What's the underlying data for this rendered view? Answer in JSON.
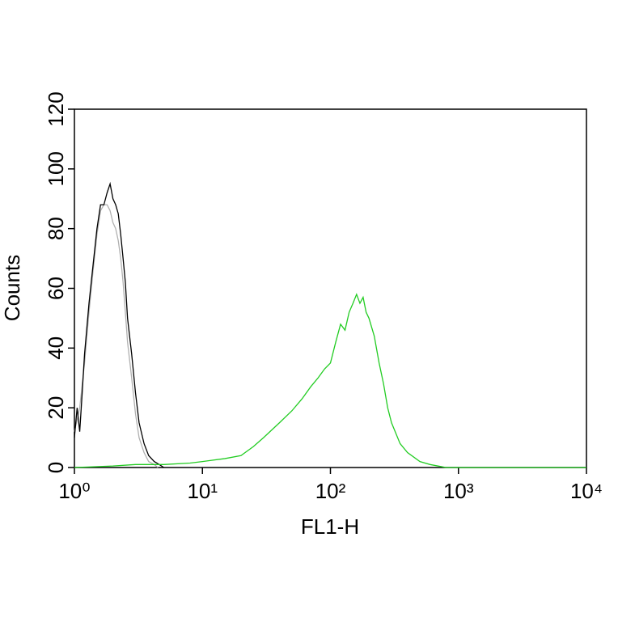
{
  "chart_data": {
    "type": "line",
    "x_label": "FL1-H",
    "y_label": "Counts",
    "xscale": "log",
    "xlim": [
      1,
      10000
    ],
    "xticks": [
      {
        "value": 1,
        "label": "10⁰"
      },
      {
        "value": 10,
        "label": "10¹"
      },
      {
        "value": 100,
        "label": "10²"
      },
      {
        "value": 1000,
        "label": "10³"
      },
      {
        "value": 10000,
        "label": "10⁴"
      }
    ],
    "ylim": [
      0,
      120
    ],
    "yticks": [
      0,
      20,
      40,
      60,
      80,
      100,
      120
    ],
    "series": [
      {
        "color": "#b0b0b0",
        "x": [
          1.0,
          1.1,
          1.2,
          1.3,
          1.4,
          1.5,
          1.6,
          1.7,
          1.8,
          1.9,
          2.0,
          2.1,
          2.2,
          2.3,
          2.4,
          2.5,
          2.6,
          2.8,
          3.0,
          3.2,
          3.5,
          3.8,
          4.2,
          4.5
        ],
        "values": [
          12,
          20,
          35,
          52,
          66,
          78,
          86,
          88,
          88,
          86,
          82,
          80,
          76,
          70,
          62,
          52,
          42,
          30,
          18,
          10,
          5,
          2,
          1,
          0
        ]
      },
      {
        "color": "#000000",
        "x": [
          1.0,
          1.05,
          1.1,
          1.15,
          1.2,
          1.3,
          1.4,
          1.5,
          1.6,
          1.7,
          1.8,
          1.9,
          2.0,
          2.1,
          2.2,
          2.3,
          2.4,
          2.5,
          2.6,
          2.8,
          3.0,
          3.2,
          3.5,
          3.8,
          4.2,
          4.6,
          5.0
        ],
        "values": [
          10,
          20,
          12,
          25,
          38,
          55,
          68,
          80,
          88,
          88,
          92,
          95,
          90,
          88,
          85,
          78,
          70,
          62,
          50,
          38,
          25,
          15,
          8,
          4,
          2,
          1,
          0
        ]
      },
      {
        "color": "#22cc22",
        "x": [
          1,
          2,
          3,
          5,
          8,
          10,
          15,
          20,
          25,
          30,
          40,
          50,
          60,
          70,
          80,
          90,
          100,
          110,
          120,
          130,
          140,
          150,
          160,
          170,
          180,
          190,
          200,
          220,
          240,
          260,
          280,
          300,
          350,
          400,
          500,
          600,
          800,
          1000,
          10000
        ],
        "values": [
          0,
          0.5,
          1,
          1,
          1.5,
          2,
          3,
          4,
          7,
          10,
          15,
          19,
          23,
          27,
          30,
          33,
          35,
          42,
          48,
          46,
          52,
          55,
          58,
          55,
          57,
          52,
          50,
          44,
          35,
          28,
          20,
          15,
          8,
          5,
          2,
          1,
          0,
          0,
          0
        ]
      }
    ]
  }
}
